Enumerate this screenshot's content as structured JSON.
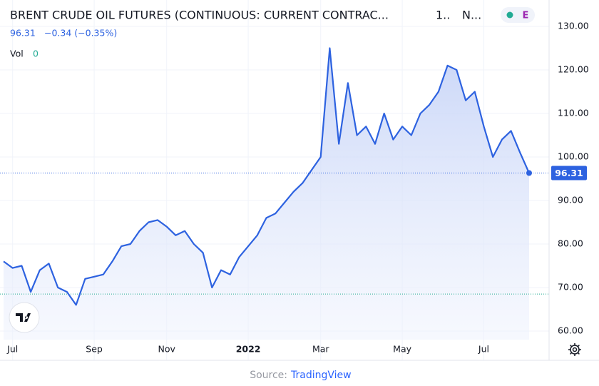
{
  "chart_data": {
    "type": "area",
    "title": "BRENT CRUDE OIL FUTURES (CONTINUOUS: CURRENT CONTRAC...",
    "title_interval": "1..",
    "title_exchange": "N...",
    "badge": "E",
    "last_price": "96.31",
    "change": "−0.34 (−0.35%)",
    "volume_label": "Vol",
    "volume_value": "0",
    "source_prefix": "Source:",
    "source_name": "TradingView",
    "categories": [
      null,
      "Jul",
      null,
      null,
      null,
      null,
      null,
      null,
      null,
      null,
      "Sep",
      null,
      null,
      null,
      null,
      null,
      null,
      null,
      "Nov",
      null,
      null,
      null,
      null,
      null,
      null,
      null,
      null,
      "2022",
      null,
      null,
      null,
      null,
      null,
      null,
      null,
      "Mar",
      null,
      null,
      null,
      null,
      null,
      null,
      null,
      null,
      "May",
      null,
      null,
      null,
      null,
      null,
      null,
      null,
      null,
      "Jul",
      null,
      null,
      null,
      null,
      null
    ],
    "series": [
      {
        "name": "Brent",
        "color": "#2d62e0",
        "values": [
          76,
          74.5,
          75,
          69,
          74,
          75.5,
          70,
          69,
          66,
          72,
          72.5,
          73,
          76,
          79.5,
          80,
          83,
          85,
          85.5,
          84,
          82,
          83,
          80,
          78,
          70,
          74,
          73,
          77,
          79.5,
          82,
          86,
          87,
          89.5,
          92,
          94,
          97,
          100,
          125,
          103,
          117,
          105,
          107,
          103,
          110,
          104,
          107,
          105,
          110,
          112,
          115,
          121,
          120,
          113,
          115,
          107,
          100,
          104,
          106,
          101,
          96.31
        ]
      }
    ],
    "low_line": 68.5,
    "ylim": [
      58,
      135
    ],
    "yticks": [
      {
        "value": 60,
        "label": "60.00"
      },
      {
        "value": 70,
        "label": "70.00"
      },
      {
        "value": 80,
        "label": "80.00"
      },
      {
        "value": 90,
        "label": "90.00"
      },
      {
        "value": 100,
        "label": "100.00"
      },
      {
        "value": 110,
        "label": "110.00"
      },
      {
        "value": 120,
        "label": "120.00"
      },
      {
        "value": 130,
        "label": "130.00"
      }
    ],
    "grid": true
  }
}
